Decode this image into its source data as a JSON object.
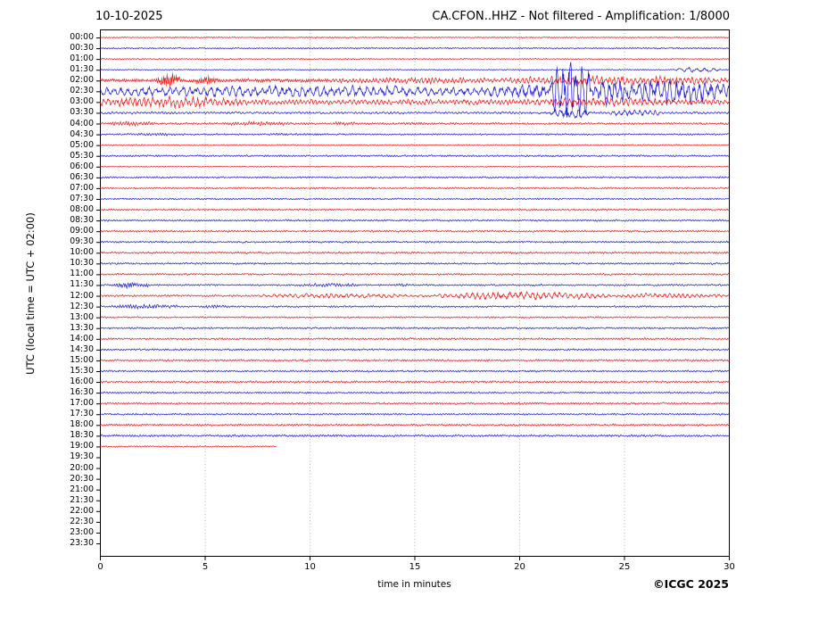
{
  "header": {
    "date": "10-10-2025",
    "title": "CA.CFON..HHZ - Not filtered - Amplification: 1/8000"
  },
  "footer": {
    "copyright": "©ICGC 2025"
  },
  "colors": {
    "red": "#ee1111",
    "blue": "#1515d6",
    "grid": "#888888",
    "frame": "#000000",
    "text": "#000000",
    "background": "#ffffff"
  },
  "chart_data": {
    "type": "line",
    "subtype": "helicorder-seismogram",
    "title": "CA.CFON..HHZ - Not filtered - Amplification: 1/8000",
    "date": "10-10-2025",
    "xlabel": "time in minutes",
    "ylabel": "UTC (local time = UTC + 02:00)",
    "x_range_minutes": [
      0,
      30
    ],
    "x_ticks": [
      0,
      5,
      10,
      15,
      20,
      25,
      30
    ],
    "x_grid_minutes": [
      5,
      10,
      15,
      20,
      25
    ],
    "grid_style": "dotted-vertical",
    "minutes_per_row": 30,
    "rows": [
      {
        "label": "00:00",
        "color": "red",
        "base": 0.7,
        "end": 30,
        "events": []
      },
      {
        "label": "00:30",
        "color": "blue",
        "base": 0.8,
        "end": 30,
        "events": []
      },
      {
        "label": "01:00",
        "color": "red",
        "base": 0.7,
        "end": 30,
        "events": []
      },
      {
        "label": "01:30",
        "color": "blue",
        "base": 0.65,
        "end": 30,
        "events": [
          {
            "t0": 27.4,
            "t1": 29.6,
            "amp": 2.2,
            "freq": 2.5
          }
        ]
      },
      {
        "label": "02:00",
        "color": "red",
        "base": 2.0,
        "freq": 10,
        "end": 30,
        "events": [
          {
            "t0": 2.7,
            "t1": 3.8,
            "amp": 5.5,
            "freq": 12
          },
          {
            "t0": 4.5,
            "t1": 5.5,
            "amp": 3.0,
            "freq": 12
          },
          {
            "t0": 11,
            "t1": 19,
            "amp": 1.6,
            "freq": 6
          },
          {
            "t0": 19,
            "t1": 30,
            "amp": 3.2,
            "freq": 5
          }
        ]
      },
      {
        "label": "02:30",
        "color": "blue",
        "base": 4.2,
        "freq": 3.2,
        "end": 30,
        "events": [
          {
            "t0": 0,
            "t1": 18,
            "amp": 1.8,
            "freq": 3
          },
          {
            "t0": 18,
            "t1": 30,
            "amp": 5.0,
            "freq": 3
          },
          {
            "t0": 21.5,
            "t1": 23.4,
            "amp": 28,
            "freq": 3.2
          },
          {
            "t0": 23.8,
            "t1": 25,
            "amp": 8,
            "freq": 3.5
          },
          {
            "t0": 25.8,
            "t1": 30,
            "amp": 7,
            "freq": 3.5
          }
        ]
      },
      {
        "label": "03:00",
        "color": "red",
        "base": 3.0,
        "freq": 5.5,
        "end": 30,
        "events": [
          {
            "t0": 0,
            "t1": 7,
            "amp": 3.2,
            "freq": 5
          },
          {
            "t0": 20.5,
            "t1": 27.5,
            "amp": 2.2,
            "freq": 4.5
          }
        ]
      },
      {
        "label": "03:30",
        "color": "blue",
        "base": 1.3,
        "freq": 6,
        "end": 30,
        "events": [
          {
            "t0": 21.4,
            "t1": 23.4,
            "amp": 5,
            "freq": 3.5
          },
          {
            "t0": 24.3,
            "t1": 26.8,
            "amp": 2.6,
            "freq": 4
          }
        ]
      },
      {
        "label": "04:00",
        "color": "red",
        "base": 1.1,
        "freq": 8,
        "end": 30,
        "events": [
          {
            "t0": 0.4,
            "t1": 2.6,
            "amp": 1.4
          },
          {
            "t0": 6,
            "t1": 9.2,
            "amp": 1.2
          },
          {
            "t0": 10.8,
            "t1": 12.2,
            "amp": 1.0
          },
          {
            "t0": 14.5,
            "t1": 15.5,
            "amp": 0.7
          }
        ]
      },
      {
        "label": "04:30",
        "color": "blue",
        "base": 0.9,
        "end": 30,
        "events": [
          {
            "t0": 1,
            "t1": 4,
            "amp": 0.5
          },
          {
            "t0": 8,
            "t1": 11,
            "amp": 0.4
          }
        ]
      },
      {
        "label": "05:00",
        "color": "red",
        "base": 0.7,
        "end": 30,
        "events": []
      },
      {
        "label": "05:30",
        "color": "blue",
        "base": 1.0,
        "end": 30,
        "events": []
      },
      {
        "label": "06:00",
        "color": "red",
        "base": 0.6,
        "end": 30,
        "events": []
      },
      {
        "label": "06:30",
        "color": "blue",
        "base": 1.0,
        "end": 30,
        "events": []
      },
      {
        "label": "07:00",
        "color": "red",
        "base": 0.9,
        "end": 30,
        "events": []
      },
      {
        "label": "07:30",
        "color": "blue",
        "base": 0.9,
        "end": 30,
        "events": []
      },
      {
        "label": "08:00",
        "color": "red",
        "base": 1.0,
        "end": 30,
        "events": []
      },
      {
        "label": "08:30",
        "color": "blue",
        "base": 1.0,
        "end": 30,
        "events": []
      },
      {
        "label": "09:00",
        "color": "red",
        "base": 1.1,
        "end": 30,
        "events": []
      },
      {
        "label": "09:30",
        "color": "blue",
        "base": 1.0,
        "end": 30,
        "events": []
      },
      {
        "label": "10:00",
        "color": "red",
        "base": 1.1,
        "end": 30,
        "events": []
      },
      {
        "label": "10:30",
        "color": "blue",
        "base": 1.0,
        "end": 30,
        "events": []
      },
      {
        "label": "11:00",
        "color": "red",
        "base": 1.0,
        "end": 30,
        "events": []
      },
      {
        "label": "11:30",
        "color": "blue",
        "base": 0.95,
        "end": 30,
        "events": [
          {
            "t0": 0.4,
            "t1": 2.4,
            "amp": 2.0,
            "freq": 9
          },
          {
            "t0": 9.3,
            "t1": 12.3,
            "amp": 1.1,
            "freq": 8
          },
          {
            "t0": 14,
            "t1": 15,
            "amp": 0.6
          }
        ]
      },
      {
        "label": "12:00",
        "color": "red",
        "base": 1.1,
        "freq": 7,
        "end": 30,
        "events": [
          {
            "t0": 7.5,
            "t1": 15.5,
            "amp": 1.6,
            "freq": 4
          },
          {
            "t0": 16,
            "t1": 24.5,
            "amp": 3.4,
            "freq": 3.8
          },
          {
            "t0": 24.5,
            "t1": 30,
            "amp": 1.8,
            "freq": 4.5
          }
        ]
      },
      {
        "label": "12:30",
        "color": "blue",
        "base": 0.95,
        "end": 30,
        "events": [
          {
            "t0": 0.5,
            "t1": 3.8,
            "amp": 1.7,
            "freq": 8
          },
          {
            "t0": 4.6,
            "t1": 6.2,
            "amp": 0.9
          }
        ]
      },
      {
        "label": "13:00",
        "color": "red",
        "base": 0.9,
        "end": 30,
        "events": []
      },
      {
        "label": "13:30",
        "color": "blue",
        "base": 1.0,
        "end": 30,
        "events": []
      },
      {
        "label": "14:00",
        "color": "red",
        "base": 1.1,
        "end": 30,
        "events": []
      },
      {
        "label": "14:30",
        "color": "blue",
        "base": 1.0,
        "end": 30,
        "events": []
      },
      {
        "label": "15:00",
        "color": "red",
        "base": 1.1,
        "end": 30,
        "events": []
      },
      {
        "label": "15:30",
        "color": "blue",
        "base": 1.0,
        "end": 30,
        "events": []
      },
      {
        "label": "16:00",
        "color": "red",
        "base": 1.2,
        "end": 30,
        "events": []
      },
      {
        "label": "16:30",
        "color": "blue",
        "base": 1.0,
        "end": 30,
        "events": []
      },
      {
        "label": "17:00",
        "color": "red",
        "base": 1.1,
        "end": 30,
        "events": []
      },
      {
        "label": "17:30",
        "color": "blue",
        "base": 1.0,
        "end": 30,
        "events": []
      },
      {
        "label": "18:00",
        "color": "red",
        "base": 1.1,
        "end": 30,
        "events": []
      },
      {
        "label": "18:30",
        "color": "blue",
        "base": 1.2,
        "end": 30,
        "events": []
      },
      {
        "label": "19:00",
        "color": "red",
        "base": 0.8,
        "end": 8.4,
        "events": []
      },
      {
        "label": "19:30",
        "color": "blue",
        "base": 0,
        "end": 0,
        "events": []
      },
      {
        "label": "20:00",
        "color": "red",
        "base": 0,
        "end": 0,
        "events": []
      },
      {
        "label": "20:30",
        "color": "blue",
        "base": 0,
        "end": 0,
        "events": []
      },
      {
        "label": "21:00",
        "color": "red",
        "base": 0,
        "end": 0,
        "events": []
      },
      {
        "label": "21:30",
        "color": "blue",
        "base": 0,
        "end": 0,
        "events": []
      },
      {
        "label": "22:00",
        "color": "red",
        "base": 0,
        "end": 0,
        "events": []
      },
      {
        "label": "22:30",
        "color": "blue",
        "base": 0,
        "end": 0,
        "events": []
      },
      {
        "label": "23:00",
        "color": "red",
        "base": 0,
        "end": 0,
        "events": []
      },
      {
        "label": "23:30",
        "color": "blue",
        "base": 0,
        "end": 0,
        "events": []
      }
    ]
  }
}
